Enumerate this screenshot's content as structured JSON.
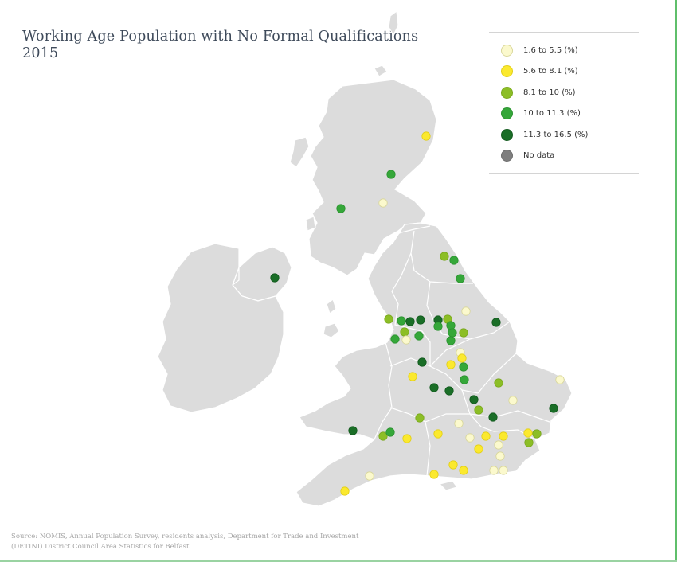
{
  "title": {
    "line1": "Working Age Population with No Formal Qualifications",
    "line2": "2015"
  },
  "legend": {
    "items": [
      {
        "label": "1.6 to 5.5 (%)",
        "color": "#fbf9cd",
        "stroke": "#d8d69a"
      },
      {
        "label": "5.6 to 8.1 (%)",
        "color": "#fbe92e",
        "stroke": "#e2cf17"
      },
      {
        "label": "8.1 to 10 (%)",
        "color": "#8cbe26",
        "stroke": "#7aa81e"
      },
      {
        "label": "10 to 11.3 (%)",
        "color": "#35a739",
        "stroke": "#2c9330"
      },
      {
        "label": "11.3 to 16.5 (%)",
        "color": "#1a6e27",
        "stroke": "#135a1e"
      },
      {
        "label": "No data",
        "color": "#7f7f7f",
        "stroke": "#6c6c6c"
      }
    ]
  },
  "map": {
    "land_color": "#dcdcdc",
    "border_color": "#ffffff",
    "classes": [
      "c1",
      "c2",
      "c3",
      "c4",
      "c5"
    ]
  },
  "source": {
    "line1": "Source: NOMIS, Annual Population Survey, residents analysis, Department for Trade and Investment",
    "line2": "(DETINI) District Council Area Statistics for Belfast"
  }
}
